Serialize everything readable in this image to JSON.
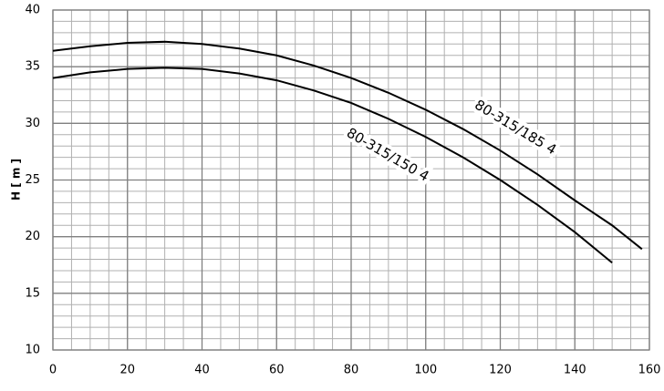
{
  "chart_data": {
    "type": "line",
    "ylabel": "H [ m ]",
    "xlim": [
      0,
      160
    ],
    "ylim": [
      10,
      40
    ],
    "xticks": [
      0,
      20,
      40,
      60,
      80,
      100,
      120,
      140,
      160
    ],
    "yticks": [
      10,
      15,
      20,
      25,
      30,
      35,
      40
    ],
    "grid": true,
    "minor_grid": {
      "x": 5,
      "y": 1
    },
    "series": [
      {
        "name": "80-315/185 4",
        "color": "#000000",
        "x": [
          0,
          10,
          20,
          30,
          40,
          50,
          60,
          70,
          80,
          90,
          100,
          110,
          120,
          130,
          140,
          150,
          158
        ],
        "values": [
          36.4,
          36.8,
          37.1,
          37.2,
          37.0,
          36.6,
          36.0,
          35.1,
          34.0,
          32.7,
          31.2,
          29.5,
          27.6,
          25.5,
          23.2,
          21.0,
          18.9
        ]
      },
      {
        "name": "80-315/150 4",
        "color": "#000000",
        "x": [
          0,
          10,
          20,
          30,
          40,
          50,
          60,
          70,
          80,
          90,
          100,
          110,
          120,
          130,
          140,
          150
        ],
        "values": [
          34.0,
          34.5,
          34.8,
          34.9,
          34.8,
          34.4,
          33.8,
          32.9,
          31.8,
          30.4,
          28.8,
          27.0,
          25.0,
          22.8,
          20.4,
          17.7
        ]
      }
    ]
  }
}
